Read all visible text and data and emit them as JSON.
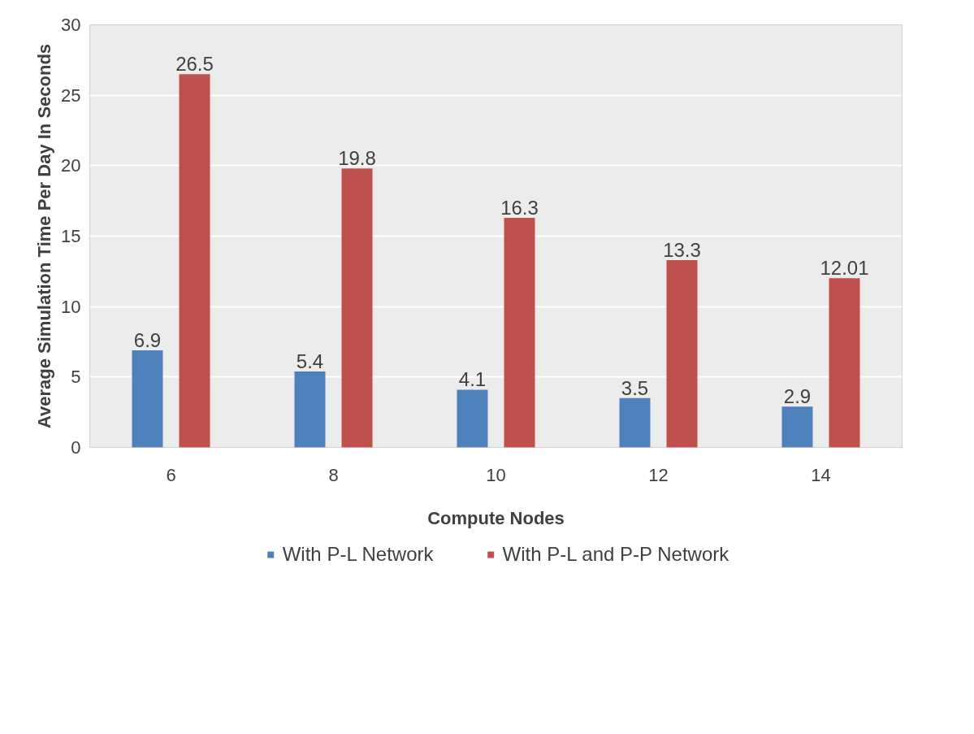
{
  "chart_data": {
    "type": "bar",
    "xlabel": "Compute Nodes",
    "ylabel": "Average Simulation Time Per Day In Seconds",
    "categories": [
      "6",
      "8",
      "10",
      "12",
      "14"
    ],
    "series": [
      {
        "name": "With P-L Network",
        "color": "#4f81bd",
        "values": [
          6.9,
          5.4,
          4.1,
          3.5,
          2.9
        ]
      },
      {
        "name": "With P-L and P-P Network",
        "color": "#c0504d",
        "values": [
          26.5,
          19.8,
          16.3,
          13.3,
          12.01
        ]
      }
    ],
    "ylim": [
      0,
      30
    ],
    "yticks": [
      0,
      5,
      10,
      15,
      20,
      25,
      30
    ],
    "grid": "y",
    "legend": "bottom",
    "data_labels": true
  }
}
